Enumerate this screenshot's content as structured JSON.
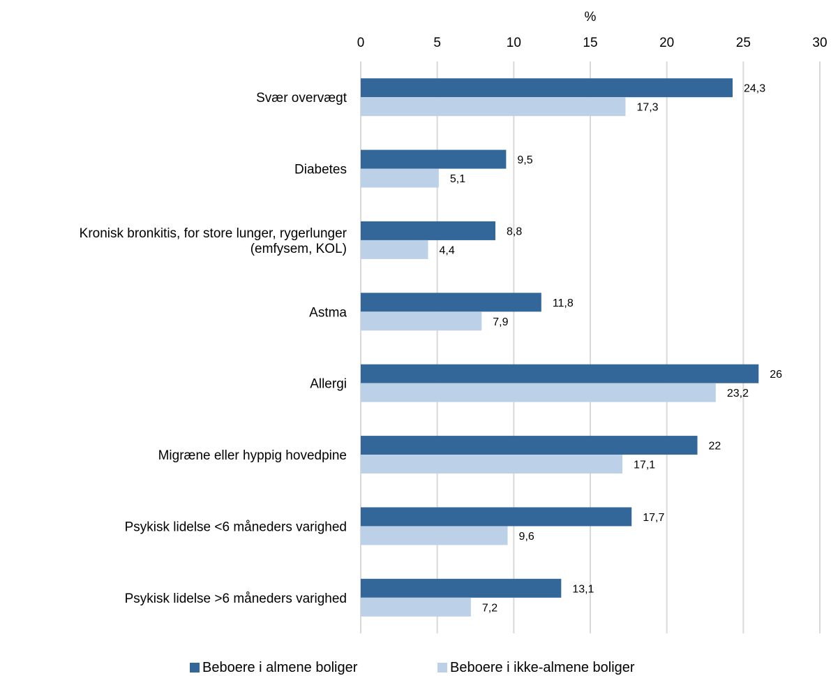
{
  "chart_data": {
    "type": "bar",
    "orientation": "horizontal",
    "x_axis_unit": "%",
    "xlim": [
      0,
      30
    ],
    "x_ticks": [
      "0",
      "5",
      "10",
      "15",
      "20",
      "25",
      "30"
    ],
    "grid": true,
    "legend_position": "bottom",
    "categories": [
      [
        "Svær overvægt"
      ],
      [
        "Diabetes"
      ],
      [
        "Kronisk bronkitis, for store lunger, rygerlunger",
        "(emfysem, KOL)"
      ],
      [
        "Astma"
      ],
      [
        "Allergi"
      ],
      [
        "Migræne eller hyppig hovedpine"
      ],
      [
        "Psykisk lidelse <6 måneders varighed"
      ],
      [
        "Psykisk lidelse >6 måneders varighed"
      ]
    ],
    "series": [
      {
        "name": "Beboere i almene boliger",
        "color": "#336699",
        "values": [
          24.3,
          9.5,
          8.8,
          11.8,
          26,
          22,
          17.7,
          13.1
        ],
        "labels": [
          "24,3",
          "9,5",
          "8,8",
          "11,8",
          "26",
          "22",
          "17,7",
          "13,1"
        ]
      },
      {
        "name": "Beboere i ikke-almene boliger",
        "color": "#bcd1e8",
        "values": [
          17.3,
          5.1,
          4.4,
          7.9,
          23.2,
          17.1,
          9.6,
          7.2
        ],
        "labels": [
          "17,3",
          "5,1",
          "4,4",
          "7,9",
          "23,2",
          "17,1",
          "9,6",
          "7,2"
        ]
      }
    ]
  }
}
